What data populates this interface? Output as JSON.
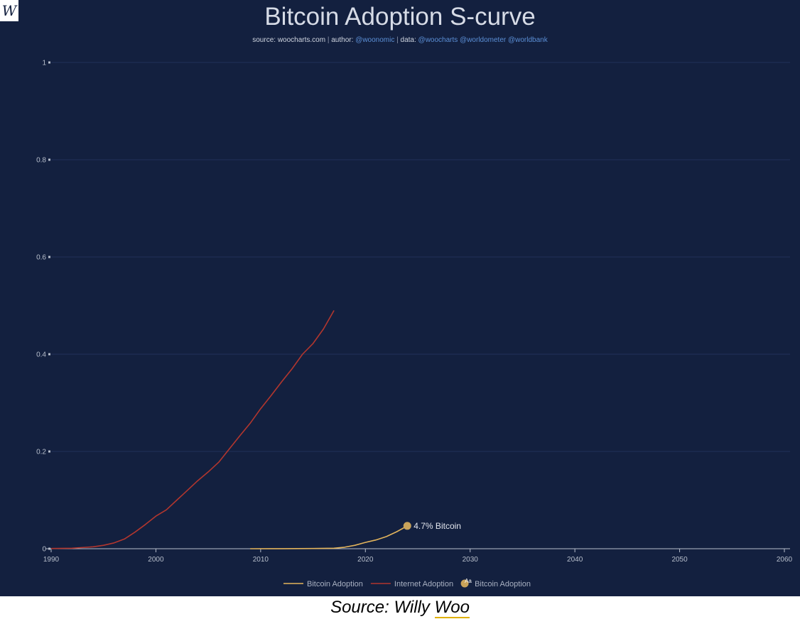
{
  "logo": {
    "text": "W"
  },
  "header": {
    "title": "Bitcoin Adoption S-curve",
    "source_label": "source:",
    "source_value": "woocharts.com",
    "author_label": "author:",
    "author_value": "@woonomic",
    "data_label": "data:",
    "data_value": "@woocharts @worldometer @worldbank"
  },
  "caption": {
    "prefix": "Source: Willy ",
    "link": "Woo"
  },
  "colors": {
    "background": "#13203f",
    "grid": "#22305a",
    "axis": "#b8bfcc",
    "bitcoin": "#e3b45c",
    "internet": "#b2362e",
    "marker": "#c9a35a"
  },
  "chart_data": {
    "type": "line",
    "title": "Bitcoin Adoption S-curve",
    "xlabel": "",
    "ylabel": "",
    "xlim": [
      1990,
      2060
    ],
    "ylim": [
      0,
      1
    ],
    "x_ticks": [
      "1990",
      "2000",
      "2010",
      "2020",
      "2030",
      "2040",
      "2050",
      "2060"
    ],
    "y_ticks": [
      "0",
      "0.2",
      "0.4",
      "0.6",
      "0.8",
      "1"
    ],
    "grid": true,
    "legend_position": "bottom",
    "series": [
      {
        "name": "Bitcoin Adoption",
        "color": "#e3b45c",
        "points": [
          [
            2009,
            0.0
          ],
          [
            2012,
            0.0002
          ],
          [
            2015,
            0.0005
          ],
          [
            2017,
            0.001
          ],
          [
            2018,
            0.003
          ],
          [
            2019,
            0.007
          ],
          [
            2020,
            0.013
          ],
          [
            2021,
            0.018
          ],
          [
            2022,
            0.025
          ],
          [
            2023,
            0.035
          ],
          [
            2024,
            0.047
          ]
        ]
      },
      {
        "name": "Internet Adoption",
        "color": "#b2362e",
        "points": [
          [
            1990,
            0.0005
          ],
          [
            1992,
            0.001
          ],
          [
            1994,
            0.004
          ],
          [
            1995,
            0.007
          ],
          [
            1996,
            0.012
          ],
          [
            1997,
            0.02
          ],
          [
            1998,
            0.034
          ],
          [
            1999,
            0.05
          ],
          [
            2000,
            0.067
          ],
          [
            2001,
            0.08
          ],
          [
            2002,
            0.1
          ],
          [
            2003,
            0.12
          ],
          [
            2004,
            0.14
          ],
          [
            2005,
            0.158
          ],
          [
            2006,
            0.178
          ],
          [
            2007,
            0.205
          ],
          [
            2008,
            0.232
          ],
          [
            2009,
            0.258
          ],
          [
            2010,
            0.288
          ],
          [
            2011,
            0.315
          ],
          [
            2012,
            0.343
          ],
          [
            2013,
            0.37
          ],
          [
            2014,
            0.4
          ],
          [
            2015,
            0.422
          ],
          [
            2016,
            0.452
          ],
          [
            2017,
            0.49
          ]
        ]
      }
    ],
    "annotation": {
      "x": 2024,
      "y": 0.047,
      "label": "4.7% Bitcoin"
    },
    "legend": [
      {
        "label": "Bitcoin Adoption",
        "kind": "line",
        "color": "#e3b45c"
      },
      {
        "label": "Internet Adoption",
        "kind": "line",
        "color": "#b2362e"
      },
      {
        "label": "Bitcoin Adoption",
        "kind": "marker-text",
        "symbol": "Aa",
        "color": "#c9a35a"
      }
    ]
  }
}
